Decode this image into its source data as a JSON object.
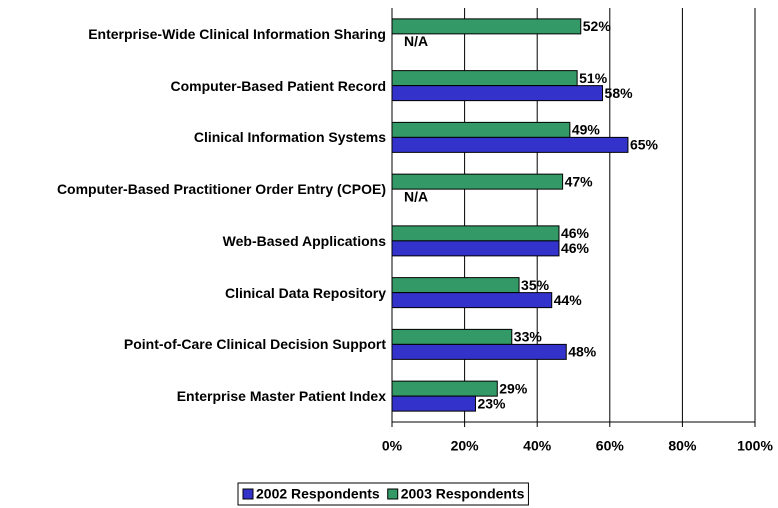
{
  "chart_data": {
    "type": "bar",
    "orientation": "horizontal",
    "categories": [
      "Enterprise-Wide Clinical Information Sharing",
      "Computer-Based Patient Record",
      "Clinical Information Systems",
      "Computer-Based Practitioner Order Entry (CPOE)",
      "Web-Based Applications",
      "Clinical Data Repository",
      "Point-of-Care Clinical Decision Support",
      "Enterprise Master Patient Index"
    ],
    "series": [
      {
        "name": "2002 Respondents",
        "color": "#3333cc",
        "values": [
          null,
          58,
          65,
          null,
          46,
          44,
          48,
          23
        ],
        "value_labels": [
          "N/A",
          "58%",
          "65%",
          "N/A",
          "46%",
          "44%",
          "48%",
          "23%"
        ]
      },
      {
        "name": "2003 Respondents",
        "color": "#339966",
        "values": [
          52,
          51,
          49,
          47,
          46,
          35,
          33,
          29
        ],
        "value_labels": [
          "52%",
          "51%",
          "49%",
          "47%",
          "46%",
          "35%",
          "33%",
          "29%"
        ]
      }
    ],
    "xlim": [
      0,
      100
    ],
    "xticks": [
      {
        "value": 0,
        "label": "0%"
      },
      {
        "value": 20,
        "label": "20%"
      },
      {
        "value": 40,
        "label": "40%"
      },
      {
        "value": 60,
        "label": "60%"
      },
      {
        "value": 80,
        "label": "80%"
      },
      {
        "value": 100,
        "label": "100%"
      }
    ],
    "grid": true,
    "legend": "bottom"
  }
}
